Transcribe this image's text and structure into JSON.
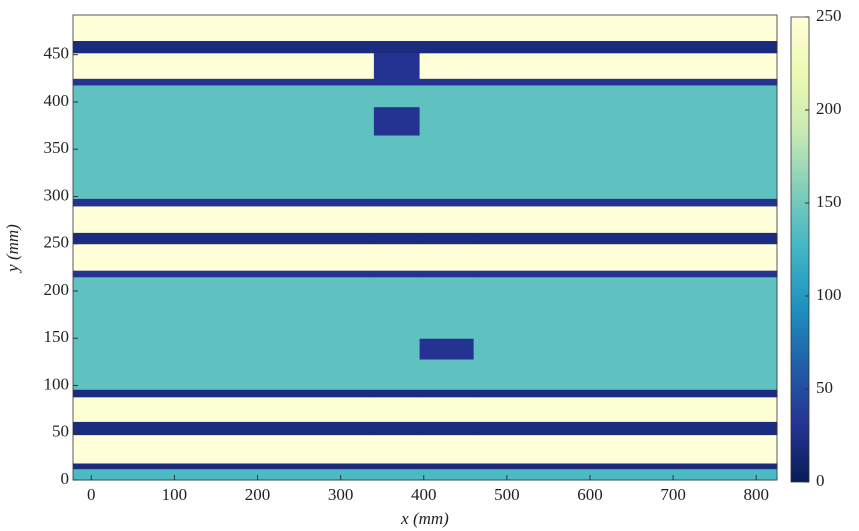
{
  "chart_data": {
    "type": "heatmap",
    "xlabel": "x (mm)",
    "ylabel": "y (mm)",
    "x": [
      -22,
      340,
      395,
      460,
      825
    ],
    "y": [
      0,
      12,
      18,
      48,
      62,
      88,
      96,
      128,
      150,
      215,
      222,
      250,
      262,
      290,
      298,
      365,
      395,
      418,
      425,
      452,
      465,
      492
    ],
    "values": [
      [
        130,
        130,
        130,
        130
      ],
      [
        20,
        20,
        20,
        20
      ],
      [
        250,
        250,
        250,
        250
      ],
      [
        20,
        20,
        20,
        20
      ],
      [
        245,
        245,
        245,
        245
      ],
      [
        20,
        20,
        20,
        20
      ],
      [
        140,
        140,
        140,
        140
      ],
      [
        140,
        140,
        30,
        140
      ],
      [
        140,
        140,
        140,
        140
      ],
      [
        30,
        30,
        30,
        30
      ],
      [
        250,
        250,
        250,
        250
      ],
      [
        20,
        20,
        20,
        20
      ],
      [
        250,
        250,
        250,
        250
      ],
      [
        30,
        30,
        30,
        30
      ],
      [
        140,
        140,
        140,
        140
      ],
      [
        140,
        30,
        140,
        140
      ],
      [
        140,
        140,
        140,
        140
      ],
      [
        30,
        30,
        30,
        30
      ],
      [
        250,
        30,
        250,
        250
      ],
      [
        20,
        20,
        20,
        20
      ],
      [
        250,
        250,
        250,
        250
      ]
    ],
    "xlim": [
      -22,
      825
    ],
    "ylim": [
      0,
      492
    ],
    "xticks": [
      0,
      100,
      200,
      300,
      400,
      500,
      600,
      700,
      800
    ],
    "yticks": [
      0,
      50,
      100,
      150,
      200,
      250,
      300,
      350,
      400,
      450
    ],
    "colormap": "YlGnBu",
    "clim": [
      0,
      250
    ],
    "cticks": [
      0,
      50,
      100,
      150,
      200,
      250
    ]
  }
}
